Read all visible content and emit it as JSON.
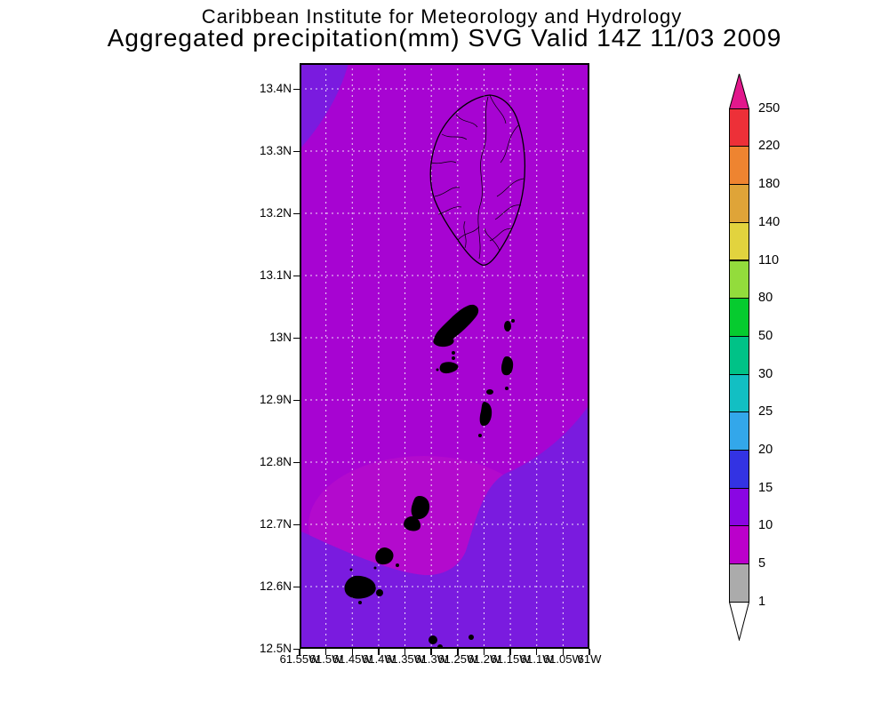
{
  "title": {
    "line1": "Caribbean Institute for Meteorology and Hydrology",
    "line2": "Aggregated precipitation(mm) SVG Valid 14Z 11/03 2009"
  },
  "map": {
    "lat_labels": [
      "13.4N",
      "13.3N",
      "13.2N",
      "13.1N",
      "13N",
      "12.9N",
      "12.8N",
      "12.7N",
      "12.6N",
      "12.5N"
    ],
    "lon_labels": [
      "61.55W",
      "61.5W",
      "61.45W",
      "61.4W",
      "61.35W",
      "61.3W",
      "61.25W",
      "61.2W",
      "61.15W",
      "61.1W",
      "61.05W",
      "61W"
    ]
  },
  "colors": {
    "page_background": "#ffffff",
    "map_base": "#A704D2",
    "map_core": "#B30ACD",
    "map_elevated": "#7A1BDF",
    "grid": "#FFFFFF",
    "island_outline": "#000000",
    "map_border": "#000000",
    "arrow_top": "#E2188C",
    "arrow_bottom": "#FFFFFF"
  },
  "colorbar": {
    "labels_top_to_bottom": [
      "250",
      "220",
      "180",
      "140",
      "110",
      "80",
      "50",
      "30",
      "25",
      "20",
      "15",
      "10",
      "5",
      "1"
    ],
    "segment_colors_top_to_bottom": [
      "#ED3038",
      "#EE8430",
      "#DFA438",
      "#E2D33E",
      "#93DC3C",
      "#06CB2F",
      "#00C287",
      "#12BFC3",
      "#33A7EA",
      "#3333E3",
      "#8A06E3",
      "#BB00CB",
      "#ABABAB"
    ]
  },
  "chart_data": {
    "type": "heatmap",
    "title": "Caribbean Institute for Meteorology and Hydrology",
    "subtitle": "Aggregated precipitation(mm) SVG Valid 14Z 11/03 2009",
    "variable": "Aggregated precipitation",
    "units": "mm",
    "valid_time": "14Z 11/03 2009",
    "domain_label": "SVG",
    "x_axis": {
      "label_type": "longitude",
      "ticks": [
        "61.55W",
        "61.5W",
        "61.45W",
        "61.4W",
        "61.35W",
        "61.3W",
        "61.25W",
        "61.2W",
        "61.15W",
        "61.1W",
        "61.05W",
        "61W"
      ]
    },
    "y_axis": {
      "label_type": "latitude",
      "ticks": [
        "13.4N",
        "13.3N",
        "13.2N",
        "13.1N",
        "13N",
        "12.9N",
        "12.8N",
        "12.7N",
        "12.6N",
        "12.5N"
      ]
    },
    "color_scale_levels_mm": [
      1,
      5,
      10,
      15,
      20,
      25,
      30,
      50,
      80,
      110,
      140,
      180,
      220,
      250
    ],
    "legend_position": "right",
    "grid": "dashed white lat-lon grid, lon every 0.05 deg, lat every 0.1 deg",
    "field_summary": [
      {
        "area": "most of domain",
        "value_mm": "5-10"
      },
      {
        "area": "southeast quadrant and southern edge",
        "value_mm": "10-15"
      },
      {
        "area": "northwest corner",
        "value_mm": "10-15"
      },
      {
        "area": "lower-center dome around southern Grenadines",
        "value_mm": "5-10"
      }
    ]
  }
}
